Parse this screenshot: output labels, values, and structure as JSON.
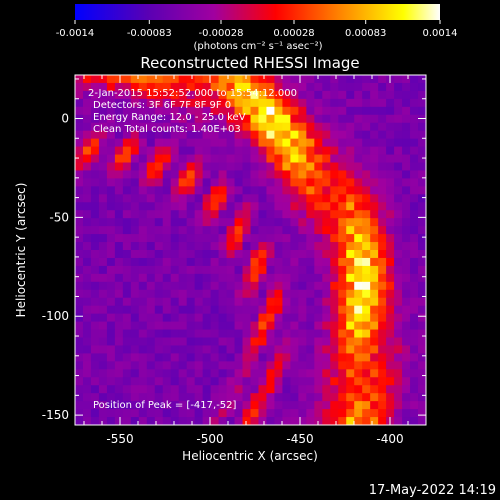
{
  "chart_data": {
    "type": "heatmap",
    "title": "Reconstructed RHESSI Image",
    "xlabel": "Heliocentric X (arcsec)",
    "ylabel": "Heliocentric Y (arcsec)",
    "xlim": [
      -575,
      -380
    ],
    "ylim": [
      -155,
      22
    ],
    "x_ticks": [
      "-550",
      "-500",
      "-450",
      "-400"
    ],
    "x_tick_values": [
      -550,
      -500,
      -450,
      -400
    ],
    "y_ticks": [
      "0",
      "-50",
      "-100",
      "-150"
    ],
    "y_tick_values": [
      0,
      -50,
      -100,
      -150
    ],
    "colorbar": {
      "range": [
        -0.0014,
        0.0014
      ],
      "tick_labels": [
        "-0.0014",
        "-0.00083",
        "-0.00028",
        "0.00028",
        "0.00083",
        "0.0014"
      ],
      "tick_values": [
        -0.0014,
        -0.00083,
        -0.00028,
        0.00028,
        0.00083,
        0.0014
      ],
      "units": "(photons cm⁻² s⁻¹ asec⁻²)",
      "colors": [
        "#0000ff",
        "#5a00b4",
        "#a000a0",
        "#ff0000",
        "#ff8000",
        "#ffff00",
        "#ffffff"
      ]
    },
    "annotations": {
      "time_range": "2-Jan-2015 15:52:52.000 to 15:54:12.000",
      "detectors": "Detectors: 3F 6F 7F 8F 9F 0",
      "energy_range": "Energy Range: 12.0 - 25.0 keV",
      "algorithm": "Clean     Total counts: 1.40E+03",
      "peak_position": "Position of Peak = [-417,-52]"
    },
    "peak": {
      "x": -417,
      "y": -52
    },
    "grid": false
  },
  "footer": {
    "timestamp": "17-May-2022 14:19"
  }
}
